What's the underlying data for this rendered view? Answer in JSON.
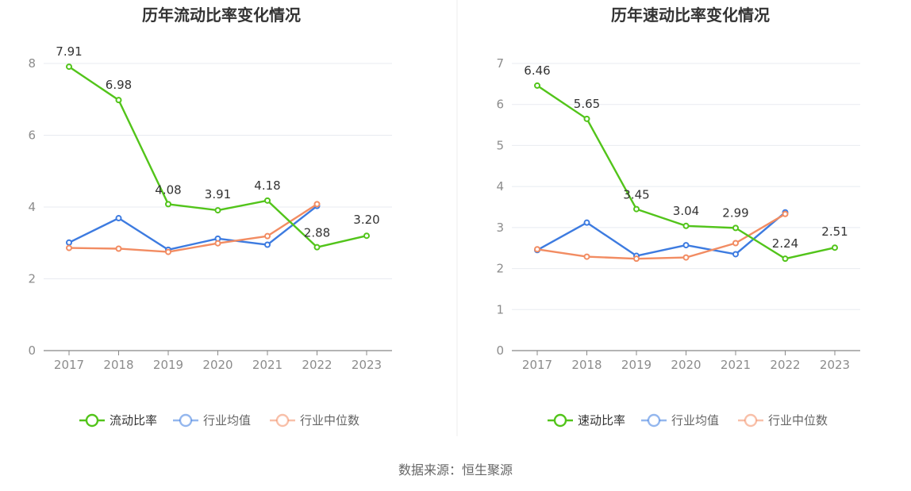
{
  "source_note": "数据来源：恒生聚源",
  "chart_data": [
    {
      "type": "line",
      "title": "历年流动比率变化情况",
      "categories": [
        "2017",
        "2018",
        "2019",
        "2020",
        "2021",
        "2022",
        "2023"
      ],
      "ylim": [
        0,
        8
      ],
      "yticks": [
        0,
        2,
        4,
        6,
        8
      ],
      "grid": true,
      "legend_position": "bottom",
      "series": [
        {
          "name": "流动比率",
          "color": "#52c41a",
          "values": [
            7.91,
            6.98,
            4.08,
            3.91,
            4.18,
            2.88,
            3.2
          ],
          "labels": [
            "7.91",
            "6.98",
            "4.08",
            "3.91",
            "4.18",
            "2.88",
            "3.20"
          ]
        },
        {
          "name": "行业均值",
          "color": "#3d7be0",
          "values": [
            3.01,
            3.69,
            2.81,
            3.12,
            2.95,
            4.03,
            null
          ]
        },
        {
          "name": "行业中位数",
          "color": "#f28c62",
          "values": [
            2.86,
            2.84,
            2.75,
            2.99,
            3.19,
            4.08,
            null
          ]
        }
      ]
    },
    {
      "type": "line",
      "title": "历年速动比率变化情况",
      "categories": [
        "2017",
        "2018",
        "2019",
        "2020",
        "2021",
        "2022",
        "2023"
      ],
      "ylim": [
        0,
        7
      ],
      "yticks": [
        0,
        1,
        2,
        3,
        4,
        5,
        6,
        7
      ],
      "grid": true,
      "legend_position": "bottom",
      "series": [
        {
          "name": "速动比率",
          "color": "#52c41a",
          "values": [
            6.46,
            5.65,
            3.45,
            3.04,
            2.99,
            2.24,
            2.51
          ],
          "labels": [
            "6.46",
            "5.65",
            "3.45",
            "3.04",
            "2.99",
            "2.24",
            "2.51"
          ]
        },
        {
          "name": "行业均值",
          "color": "#3d7be0",
          "values": [
            2.45,
            3.12,
            2.31,
            2.57,
            2.35,
            3.37,
            null
          ]
        },
        {
          "name": "行业中位数",
          "color": "#f28c62",
          "values": [
            2.47,
            2.29,
            2.24,
            2.27,
            2.62,
            3.33,
            null
          ]
        }
      ]
    }
  ]
}
